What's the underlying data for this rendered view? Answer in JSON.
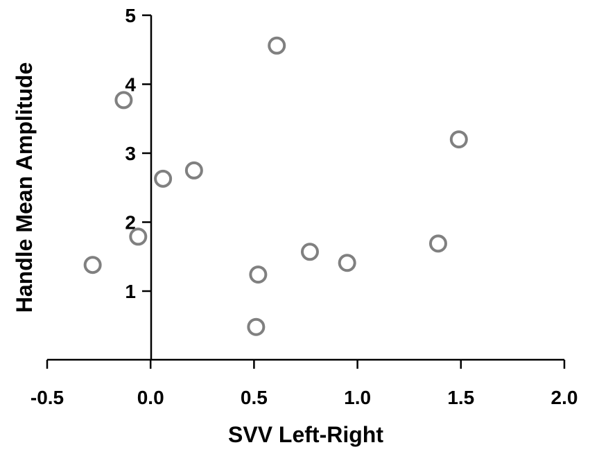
{
  "chart_data": {
    "type": "scatter",
    "xlabel": "SVV Left-Right",
    "ylabel": "Handle Mean Amplitude",
    "xlim": [
      -0.5,
      2.0
    ],
    "ylim": [
      0,
      5
    ],
    "x_ticks": [
      -0.5,
      0.0,
      0.5,
      1.0,
      1.5,
      2.0
    ],
    "x_tick_labels": [
      "-0.5",
      "0.0",
      "0.5",
      "1.0",
      "1.5",
      "2.0"
    ],
    "y_ticks": [
      1,
      2,
      3,
      4,
      5
    ],
    "y_tick_labels": [
      "1",
      "2",
      "3",
      "4",
      "5"
    ],
    "grid": false,
    "marker": "open-circle",
    "marker_color": "#808080",
    "points": [
      {
        "x": 0.61,
        "y": 4.56
      },
      {
        "x": -0.13,
        "y": 3.77
      },
      {
        "x": 1.49,
        "y": 3.2
      },
      {
        "x": 0.21,
        "y": 2.75
      },
      {
        "x": 0.06,
        "y": 2.63
      },
      {
        "x": -0.06,
        "y": 1.79
      },
      {
        "x": 1.39,
        "y": 1.69
      },
      {
        "x": 0.77,
        "y": 1.57
      },
      {
        "x": 0.95,
        "y": 1.41
      },
      {
        "x": -0.28,
        "y": 1.38
      },
      {
        "x": 0.52,
        "y": 1.24
      },
      {
        "x": 0.51,
        "y": 0.48
      }
    ]
  }
}
